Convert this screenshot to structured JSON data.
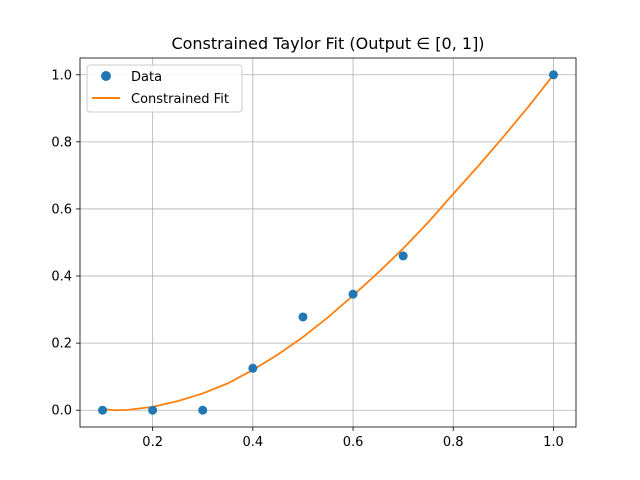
{
  "chart_data": {
    "type": "line",
    "title": "Constrained Taylor Fit (Output ∈ [0, 1])",
    "xlabel": "",
    "ylabel": "",
    "xlim": [
      0.055,
      1.045
    ],
    "ylim": [
      -0.05,
      1.05
    ],
    "xticks": [
      0.2,
      0.4,
      0.6,
      0.8,
      1.0
    ],
    "xtick_labels": [
      "0.2",
      "0.4",
      "0.6",
      "0.8",
      "1.0"
    ],
    "yticks": [
      0.0,
      0.2,
      0.4,
      0.6,
      0.8,
      1.0
    ],
    "ytick_labels": [
      "0.0",
      "0.2",
      "0.4",
      "0.6",
      "0.8",
      "1.0"
    ],
    "grid": true,
    "legend_position": "top-left",
    "series": [
      {
        "name": "Data",
        "kind": "scatter",
        "color": "#1f77b4",
        "x": [
          0.1,
          0.2,
          0.3,
          0.4,
          0.5,
          0.6,
          0.7,
          1.0
        ],
        "y": [
          0.0,
          0.0,
          0.0,
          0.125,
          0.278,
          0.346,
          0.46,
          1.0
        ]
      },
      {
        "name": "Constrained Fit",
        "kind": "line",
        "color": "#ff7f0e",
        "x": [
          0.1,
          0.125,
          0.15,
          0.2,
          0.25,
          0.3,
          0.35,
          0.4,
          0.45,
          0.5,
          0.55,
          0.6,
          0.65,
          0.7,
          0.75,
          0.8,
          0.85,
          0.9,
          0.95,
          1.0
        ],
        "y": [
          0.003,
          0.0,
          0.001,
          0.01,
          0.027,
          0.05,
          0.08,
          0.12,
          0.166,
          0.218,
          0.277,
          0.342,
          0.41,
          0.482,
          0.56,
          0.645,
          0.728,
          0.815,
          0.905,
          1.0
        ]
      }
    ]
  }
}
